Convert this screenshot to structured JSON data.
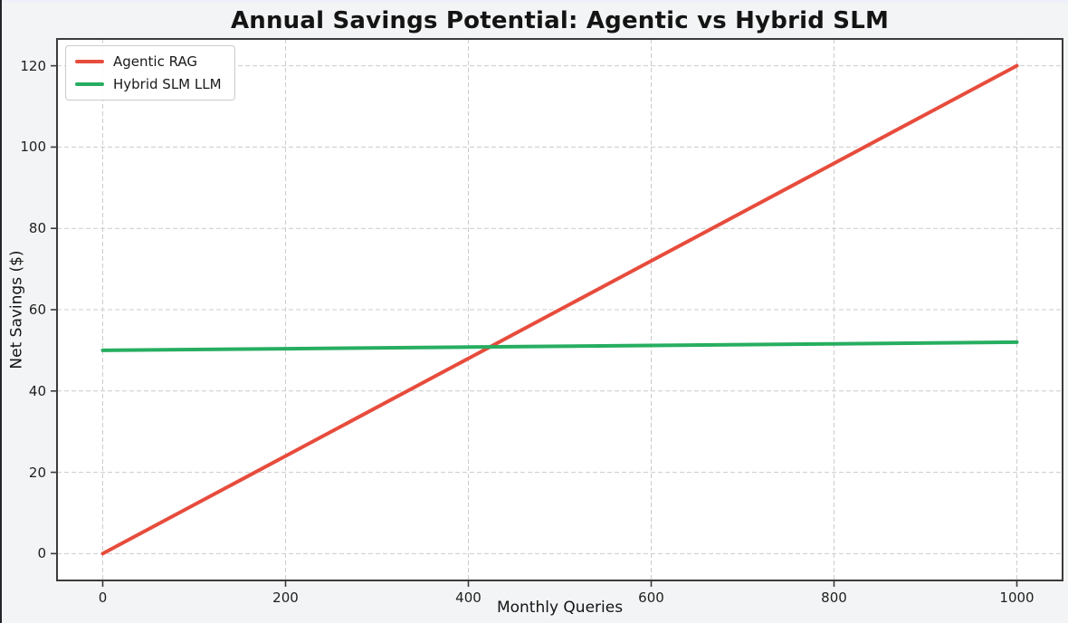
{
  "figure": {
    "background_color": "#f3f4f5",
    "plot_background_color": "#ffffff",
    "spine_color": "#3b3b3b",
    "grid_color": "#cccccc"
  },
  "chart_data": {
    "type": "line",
    "title": "Annual Savings Potential: Agentic vs Hybrid SLM",
    "xlabel": "Monthly Queries",
    "ylabel": "Net Savings ($)",
    "xlim": [
      -50,
      1050
    ],
    "ylim": [
      -6.6,
      126.6
    ],
    "x_ticks": [
      0,
      200,
      400,
      600,
      800,
      1000
    ],
    "y_ticks": [
      0,
      20,
      40,
      60,
      80,
      100,
      120
    ],
    "grid": true,
    "grid_style": "dashed",
    "legend_position": "upper-left",
    "x": [
      0,
      200,
      400,
      600,
      800,
      1000
    ],
    "series": [
      {
        "name": "Agentic RAG",
        "color": "#e74c3c",
        "values": [
          0,
          24,
          48,
          72,
          96,
          120
        ]
      },
      {
        "name": "Hybrid SLM LLM",
        "color": "#27ae60",
        "values": [
          50,
          50.4,
          50.8,
          51.2,
          51.6,
          52
        ]
      }
    ]
  }
}
